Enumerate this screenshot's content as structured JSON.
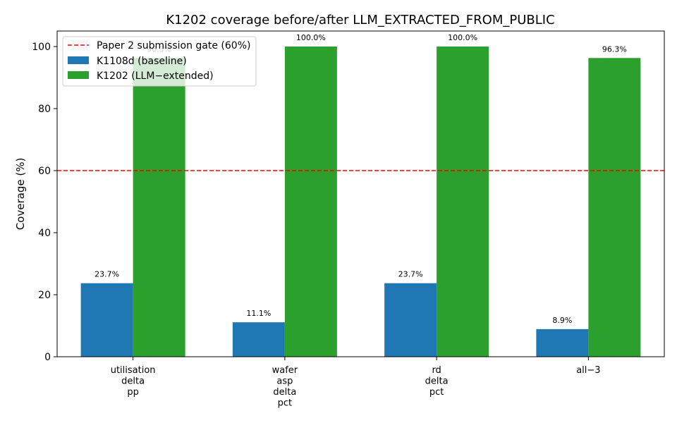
{
  "chart_data": {
    "type": "bar",
    "title": "K1202 coverage before/after LLM_EXTRACTED_FROM_PUBLIC",
    "xlabel": "",
    "ylabel": "Coverage (%)",
    "ylim": [
      0,
      105
    ],
    "yticks": [
      0,
      20,
      40,
      60,
      80,
      100
    ],
    "categories": [
      [
        "utilisation",
        "delta",
        "pp"
      ],
      [
        "wafer",
        "asp",
        "delta",
        "pct"
      ],
      [
        "rd",
        "delta",
        "pct"
      ],
      [
        "all−3"
      ]
    ],
    "series": [
      {
        "name": "K1108d (baseline)",
        "color": "#1f77b4",
        "values": [
          23.7,
          11.1,
          23.7,
          8.9
        ],
        "labels": [
          "23.7%",
          "11.1%",
          "23.7%",
          "8.9%"
        ]
      },
      {
        "name": "K1202 (LLM−extended)",
        "color": "#2ca02c",
        "values": [
          96.3,
          100.0,
          100.0,
          96.3
        ],
        "labels": [
          "96.3%",
          "100.0%",
          "100.0%",
          "96.3%"
        ]
      }
    ],
    "reference_line": {
      "name": "Paper 2 submission gate (60%)",
      "value": 60,
      "color": "#ff0000",
      "style": "dashed"
    },
    "legend": "top-left",
    "grid": false
  }
}
